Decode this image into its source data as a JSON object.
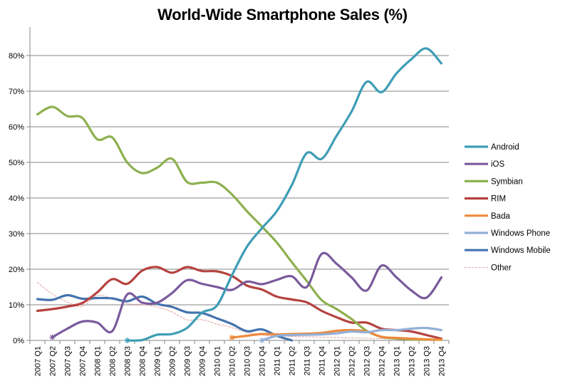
{
  "chart_data": {
    "type": "line",
    "title": "World-Wide Smartphone Sales (%)",
    "xlabel": "",
    "ylabel": "",
    "ylim": [
      0,
      85
    ],
    "yticks": [
      0,
      10,
      20,
      30,
      40,
      50,
      60,
      70,
      80
    ],
    "ytick_labels": [
      "0%",
      "10%",
      "20%",
      "30%",
      "40%",
      "50%",
      "60%",
      "70%",
      "80%"
    ],
    "grid": "horizontal",
    "legend_position": "right",
    "categories": [
      "2007 Q1",
      "2007 Q2",
      "2007 Q3",
      "2007 Q4",
      "2008 Q1",
      "2008 Q2",
      "2008 Q3",
      "2008 Q4",
      "2009 Q1",
      "2009 Q2",
      "2009 Q3",
      "2009 Q4",
      "2010 Q1",
      "2010 Q2",
      "2010 Q3",
      "2010 Q4",
      "2011 Q1",
      "2011 Q2",
      "2011 Q3",
      "2011 Q4",
      "2012 Q1",
      "2012 Q2",
      "2012 Q3",
      "2012 Q4",
      "2013 Q1",
      "2013 Q2",
      "2013 Q3",
      "2013 Q4"
    ],
    "series": [
      {
        "name": "Android",
        "color": "#3E9DB5",
        "dashed": false,
        "values": [
          null,
          null,
          null,
          null,
          null,
          null,
          0,
          0.1,
          1.6,
          1.8,
          3.5,
          7.8,
          9.8,
          18.3,
          26.3,
          31.5,
          36.3,
          43.6,
          52.6,
          51.0,
          57.5,
          64.3,
          72.6,
          69.7,
          75.0,
          79.0,
          82.0,
          77.8
        ]
      },
      {
        "name": "iOS",
        "color": "#7A5A9C",
        "dashed": false,
        "values": [
          null,
          0.9,
          3.3,
          5.3,
          5.0,
          2.6,
          12.9,
          10.6,
          10.6,
          13.3,
          16.9,
          15.9,
          15.0,
          14.2,
          16.5,
          15.8,
          17.0,
          18.0,
          15.0,
          24.3,
          21.5,
          17.7,
          14.0,
          21.0,
          17.7,
          14.0,
          12.0,
          17.7
        ]
      },
      {
        "name": "Symbian",
        "color": "#8EB04E",
        "dashed": false,
        "values": [
          63.5,
          65.6,
          63.0,
          62.5,
          56.5,
          57.0,
          50.0,
          47.0,
          48.5,
          51.0,
          44.5,
          44.3,
          44.3,
          41.0,
          36.3,
          32.0,
          27.5,
          22.0,
          16.7,
          11.3,
          8.8,
          6.0,
          2.7,
          1.0,
          0.5,
          0.3,
          0.2,
          0.2
        ]
      },
      {
        "name": "RIM",
        "color": "#B5433F",
        "dashed": false,
        "values": [
          8.3,
          8.8,
          9.5,
          10.5,
          13.5,
          17.2,
          15.9,
          19.6,
          20.6,
          19.0,
          20.6,
          19.5,
          19.4,
          18.1,
          15.4,
          14.3,
          12.3,
          11.5,
          10.7,
          8.3,
          6.5,
          5.0,
          5.0,
          3.3,
          2.9,
          2.5,
          1.5,
          0.5
        ]
      },
      {
        "name": "Bada",
        "color": "#EE8A3C",
        "dashed": false,
        "values": [
          null,
          null,
          null,
          null,
          null,
          null,
          null,
          null,
          null,
          null,
          null,
          null,
          null,
          0.8,
          1.3,
          1.8,
          1.7,
          1.8,
          1.9,
          2.1,
          2.7,
          2.9,
          2.5,
          1.0,
          0.7,
          0.5,
          0.3,
          0.2
        ]
      },
      {
        "name": "Windows Phone",
        "color": "#93B0D6",
        "dashed": false,
        "values": [
          null,
          null,
          null,
          null,
          null,
          null,
          null,
          null,
          null,
          null,
          null,
          null,
          null,
          null,
          null,
          0,
          1.3,
          1.5,
          1.6,
          1.7,
          2.0,
          2.5,
          2.3,
          2.9,
          2.9,
          3.3,
          3.5,
          2.9
        ]
      },
      {
        "name": "Windows Mobile",
        "color": "#4373AD",
        "dashed": false,
        "values": [
          11.6,
          11.4,
          12.7,
          11.7,
          11.9,
          11.8,
          11.0,
          12.3,
          10.3,
          9.4,
          7.9,
          7.7,
          6.2,
          4.6,
          2.6,
          3.1,
          1.3,
          0
        ]
      },
      {
        "name": "Other",
        "color": "#E2A6A4",
        "dashed": true,
        "values": [
          16.3,
          13.0,
          10.8,
          9.6,
          12.6,
          11.8,
          10.3,
          10.1,
          9.4,
          8.0,
          5.8,
          5.8,
          4.6,
          3.6,
          2.3,
          1.5,
          1.3,
          1.1,
          1.0,
          0.9,
          0.8,
          0.7,
          0.6,
          0.5,
          0.4,
          0.3,
          0.2,
          0.1
        ]
      }
    ],
    "start_markers": [
      "iOS",
      "Android",
      "Bada",
      "Windows Phone"
    ]
  }
}
